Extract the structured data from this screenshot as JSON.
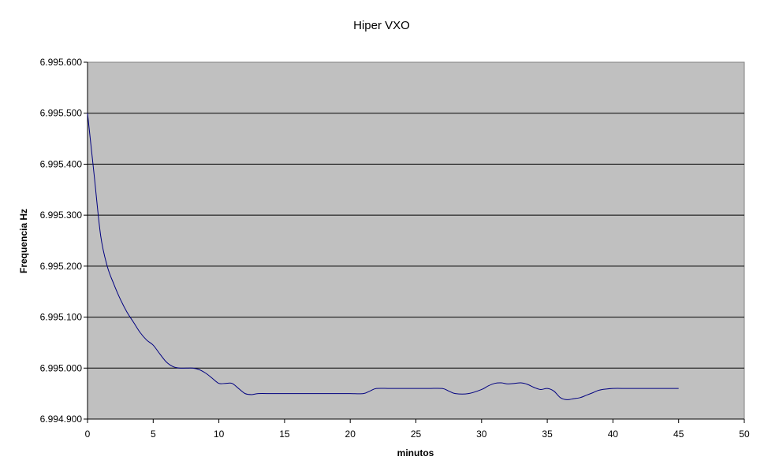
{
  "chart_data": {
    "type": "line",
    "title": "Hiper VXO",
    "xlabel": "minutos",
    "ylabel": "Frequencia Hz",
    "xlim": [
      0,
      50
    ],
    "ylim": [
      6994900,
      6995600
    ],
    "x_ticks": [
      "0",
      "5",
      "10",
      "15",
      "20",
      "25",
      "30",
      "35",
      "40",
      "45",
      "50"
    ],
    "y_ticks": [
      "6.995.600",
      "6.995.500",
      "6.995.400",
      "6.995.300",
      "6.995.200",
      "6.995.100",
      "6.995.000",
      "6.994.900"
    ],
    "grid": true,
    "legend": "none",
    "colors": {
      "plot_bg": "#c0c0c0",
      "line": "#000080",
      "grid": "#000000"
    },
    "series": [
      {
        "x": [
          0,
          0.5,
          1,
          1.5,
          2,
          2.5,
          3,
          3.5,
          4,
          4.5,
          5,
          5.5,
          6,
          6.5,
          7,
          7.5,
          8,
          8.5,
          9,
          9.5,
          10,
          10.5,
          11,
          11.5,
          12,
          12.5,
          13,
          14,
          15,
          16,
          17,
          18,
          19,
          20,
          21,
          21.5,
          22,
          23,
          24,
          25,
          26,
          27,
          27.5,
          28,
          29,
          30,
          30.5,
          31,
          31.5,
          32,
          32.5,
          33,
          33.5,
          34,
          34.5,
          35,
          35.5,
          36,
          36.5,
          37,
          37.5,
          38,
          38.5,
          39,
          40,
          41,
          42,
          43,
          44,
          45
        ],
        "y": [
          6995500,
          6995380,
          6995260,
          6995200,
          6995165,
          6995135,
          6995110,
          6995090,
          6995070,
          6995055,
          6995045,
          6995028,
          6995012,
          6995003,
          6995000,
          6995000,
          6995000,
          6994997,
          6994990,
          6994980,
          6994970,
          6994970,
          6994970,
          6994960,
          6994950,
          6994948,
          6994950,
          6994950,
          6994950,
          6994950,
          6994950,
          6994950,
          6994950,
          6994950,
          6994950,
          6994955,
          6994960,
          6994960,
          6994960,
          6994960,
          6994960,
          6994960,
          6994955,
          6994950,
          6994950,
          6994958,
          6994965,
          6994970,
          6994971,
          6994969,
          6994970,
          6994971,
          6994968,
          6994962,
          6994958,
          6994960,
          6994955,
          6994942,
          6994938,
          6994940,
          6994942,
          6994947,
          6994952,
          6994957,
          6994960,
          6994960,
          6994960,
          6994960,
          6994960,
          6994960
        ]
      }
    ]
  }
}
